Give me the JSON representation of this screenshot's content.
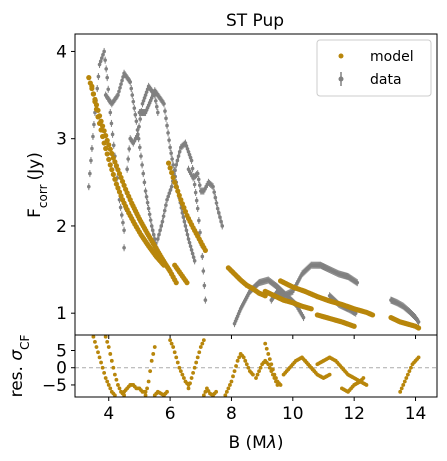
{
  "chart_data": [
    {
      "type": "scatter",
      "title": "ST Pup",
      "xlabel": "",
      "ylabel": "F",
      "ylabel_sub": "corr",
      "ylabel_unit": "(Jy)",
      "xlim": [
        2.9,
        14.7
      ],
      "ylim": [
        0.75,
        4.2
      ],
      "yticks": [
        1,
        2,
        3,
        4
      ],
      "yticklabels": [
        "1",
        "2",
        "3",
        "4"
      ],
      "grid": false,
      "legend_position": "top-right",
      "legend": [
        {
          "label": "model",
          "marker": "dot",
          "color": "#b8860b"
        },
        {
          "label": "data",
          "marker": "errorbar",
          "color": "#808080"
        }
      ],
      "series": [
        {
          "name": "data",
          "color": "#808080",
          "segments": [
            {
              "x": [
                3.35,
                3.42,
                3.55,
                3.7,
                3.85,
                3.95,
                4.05,
                4.2,
                4.35,
                4.5
              ],
              "y": [
                2.45,
                2.75,
                3.3,
                3.85,
                4.0,
                3.7,
                3.3,
                2.8,
                2.3,
                1.95
              ]
            },
            {
              "x": [
                3.9,
                4.1,
                4.3,
                4.5,
                4.7,
                4.9,
                5.05,
                5.2,
                5.4,
                5.6
              ],
              "y": [
                3.5,
                3.4,
                3.5,
                3.75,
                3.65,
                3.2,
                2.8,
                2.4,
                2.0,
                1.7
              ]
            },
            {
              "x": [
                4.5,
                4.55,
                4.6,
                4.7,
                4.8,
                4.95,
                5.1,
                5.3,
                5.5,
                5.6
              ],
              "y": [
                1.75,
                2.2,
                2.65,
                3.0,
                2.95,
                3.05,
                3.4,
                3.6,
                3.5,
                3.3
              ]
            },
            {
              "x": [
                5.0,
                5.2,
                5.5,
                5.8,
                6.0,
                6.2,
                6.4,
                6.6,
                6.8
              ],
              "y": [
                3.3,
                3.3,
                3.55,
                3.4,
                2.9,
                2.5,
                2.15,
                1.85,
                1.6
              ]
            },
            {
              "x": [
                5.6,
                5.75,
                5.9,
                6.05,
                6.2,
                6.35,
                6.5,
                6.7,
                6.9,
                7.05,
                7.15
              ],
              "y": [
                1.85,
                2.05,
                2.3,
                2.45,
                2.7,
                2.9,
                2.95,
                2.75,
                2.2,
                1.65,
                1.15
              ]
            },
            {
              "x": [
                6.6,
                6.75,
                6.9,
                7.0,
                7.1,
                7.25,
                7.4,
                7.55,
                7.7
              ],
              "y": [
                2.65,
                2.55,
                2.6,
                2.4,
                2.4,
                2.5,
                2.45,
                2.2,
                2.0
              ]
            },
            {
              "x": [
                8.1,
                8.3,
                8.6,
                8.9,
                9.2,
                9.5,
                9.8,
                10.1,
                10.35
              ],
              "y": [
                0.88,
                1.05,
                1.25,
                1.35,
                1.38,
                1.3,
                1.2,
                1.1,
                0.95
              ]
            },
            {
              "x": [
                9.3,
                9.5,
                9.7,
                10.0,
                10.3,
                10.6,
                10.9,
                11.2,
                11.5,
                11.8,
                12.1
              ],
              "y": [
                1.15,
                1.25,
                1.2,
                1.25,
                1.45,
                1.55,
                1.55,
                1.5,
                1.45,
                1.42,
                1.35
              ]
            },
            {
              "x": [
                11.2,
                11.5,
                11.8,
                12.05
              ],
              "y": [
                1.2,
                1.1,
                1.05,
                1.0
              ]
            },
            {
              "x": [
                13.2,
                13.4,
                13.6,
                13.8,
                14.0,
                14.1
              ],
              "y": [
                1.15,
                1.12,
                1.08,
                1.02,
                0.95,
                0.9
              ]
            }
          ]
        },
        {
          "name": "model",
          "color": "#b8860b",
          "segments": [
            {
              "x": [
                3.35,
                3.55,
                3.75,
                3.95,
                4.15,
                4.35,
                4.55,
                4.75,
                5.0,
                5.25,
                5.5,
                5.75,
                6.0,
                6.2
              ],
              "y": [
                3.7,
                3.45,
                3.2,
                2.98,
                2.78,
                2.6,
                2.42,
                2.26,
                2.08,
                1.92,
                1.77,
                1.62,
                1.48,
                1.35
              ]
            },
            {
              "x": [
                3.45,
                3.65,
                3.85,
                4.05,
                4.25,
                4.45,
                4.65,
                4.85,
                5.05,
                5.3,
                5.55,
                5.8
              ],
              "y": [
                3.6,
                3.25,
                2.95,
                2.7,
                2.48,
                2.3,
                2.15,
                2.02,
                1.9,
                1.77,
                1.65,
                1.55
              ]
            },
            {
              "x": [
                5.95,
                6.15,
                6.35,
                6.55,
                6.75,
                6.95,
                7.15
              ],
              "y": [
                2.72,
                2.5,
                2.3,
                2.12,
                1.98,
                1.85,
                1.72
              ]
            },
            {
              "x": [
                6.15,
                6.35,
                6.55
              ],
              "y": [
                1.55,
                1.45,
                1.35
              ]
            },
            {
              "x": [
                7.9,
                8.1,
                8.3,
                8.5,
                8.7,
                8.9,
                9.1
              ],
              "y": [
                1.52,
                1.45,
                1.38,
                1.32,
                1.28,
                1.23,
                1.2
              ]
            },
            {
              "x": [
                9.1,
                9.4,
                9.7,
                10.0,
                10.3,
                10.6
              ],
              "y": [
                1.25,
                1.2,
                1.15,
                1.12,
                1.08,
                1.05
              ]
            },
            {
              "x": [
                9.6,
                10.0,
                10.4,
                10.8,
                11.2,
                11.6,
                12.0,
                12.4,
                12.6
              ],
              "y": [
                1.37,
                1.3,
                1.25,
                1.19,
                1.14,
                1.1,
                1.05,
                1.01,
                0.98
              ]
            },
            {
              "x": [
                10.8,
                11.2,
                11.6,
                12.0
              ],
              "y": [
                0.98,
                0.94,
                0.9,
                0.85
              ]
            },
            {
              "x": [
                13.2,
                13.5,
                13.8,
                14.0,
                14.1
              ],
              "y": [
                0.95,
                0.9,
                0.87,
                0.85,
                0.83
              ]
            }
          ]
        }
      ]
    },
    {
      "type": "scatter",
      "xlabel": "B (M",
      "xlabel_symbol": "λ",
      "xlabel_close": ")",
      "ylabel": "res. ",
      "ylabel_symbol": "σ",
      "ylabel_sub": "CF",
      "xlim": [
        2.9,
        14.7
      ],
      "ylim": [
        -8.5,
        9.5
      ],
      "xticks": [
        4,
        6,
        8,
        10,
        12,
        14
      ],
      "xticklabels": [
        "4",
        "6",
        "8",
        "10",
        "12",
        "14"
      ],
      "yticks": [
        -5,
        0,
        5
      ],
      "yticklabels": [
        "−5",
        "0",
        "5"
      ],
      "reference_line": 0,
      "series": [
        {
          "name": "model",
          "color": "#b8860b",
          "segments": [
            {
              "x": [
                3.5,
                3.6,
                3.7,
                3.8,
                3.9,
                4.0,
                4.1,
                4.2
              ],
              "y": [
                9,
                6,
                3,
                0,
                -3,
                -5,
                -7,
                -8
              ]
            },
            {
              "x": [
                3.9,
                4.0,
                4.1,
                4.2,
                4.3,
                4.4,
                4.5
              ],
              "y": [
                9,
                6,
                2,
                -2,
                -5,
                -7,
                -8
              ]
            },
            {
              "x": [
                4.5,
                4.6,
                4.7,
                4.8,
                4.9,
                5.0,
                5.1,
                5.2
              ],
              "y": [
                -7,
                -6,
                -5,
                -5,
                -6,
                -6,
                -7,
                -7
              ]
            },
            {
              "x": [
                5.2,
                5.3,
                5.4,
                5.5
              ],
              "y": [
                -8,
                -4,
                2,
                6
              ]
            },
            {
              "x": [
                5.5,
                5.6,
                5.7,
                5.8,
                5.9
              ],
              "y": [
                -8,
                -7,
                -7.5,
                -8,
                -7
              ]
            },
            {
              "x": [
                6.0,
                6.1,
                6.2,
                6.3,
                6.4,
                6.5,
                6.6
              ],
              "y": [
                8,
                6,
                3,
                0,
                -2,
                -4,
                -5
              ]
            },
            {
              "x": [
                6.6,
                6.7,
                6.8,
                6.9,
                7.0,
                7.1
              ],
              "y": [
                -6,
                -3,
                0,
                3,
                6,
                8
              ]
            },
            {
              "x": [
                7.1,
                7.2,
                7.3,
                7.4,
                7.5
              ],
              "y": [
                -8,
                -6,
                -7.5,
                -8,
                -7
              ]
            },
            {
              "x": [
                7.8,
                7.9,
                8.0,
                8.1,
                8.2,
                8.3,
                8.4,
                8.5,
                8.6,
                8.7
              ],
              "y": [
                -8,
                -6,
                -4,
                -1,
                2,
                4,
                3,
                1,
                -1,
                -2
              ]
            },
            {
              "x": [
                8.8,
                8.9,
                9.0,
                9.1,
                9.2,
                9.3,
                9.4,
                9.5
              ],
              "y": [
                -3,
                -1,
                1,
                2,
                1,
                -1,
                -3,
                -5
              ]
            },
            {
              "x": [
                9.1,
                9.2,
                9.3,
                9.4,
                9.5,
                9.6
              ],
              "y": [
                7,
                4,
                1,
                -2,
                -4,
                -5
              ]
            },
            {
              "x": [
                9.7,
                9.9,
                10.1,
                10.3,
                10.5,
                10.7
              ],
              "y": [
                -2,
                0,
                2,
                3,
                1,
                -1
              ]
            },
            {
              "x": [
                10.4,
                10.6,
                10.8,
                11.0,
                11.2
              ],
              "y": [
                2,
                0,
                -2,
                -3,
                -2
              ]
            },
            {
              "x": [
                10.8,
                11.0,
                11.2,
                11.4,
                11.6,
                11.8,
                12.0,
                12.2,
                12.4
              ],
              "y": [
                1,
                2,
                3,
                2,
                0,
                -2,
                -3,
                -4,
                -5
              ]
            },
            {
              "x": [
                11.6,
                11.8,
                12.0,
                12.2,
                12.3
              ],
              "y": [
                -6,
                -7,
                -5,
                -4,
                -3
              ]
            },
            {
              "x": [
                13.5,
                13.6,
                13.7,
                13.8,
                13.9,
                14.0,
                14.1
              ],
              "y": [
                -7,
                -5,
                -3,
                -1,
                1,
                2,
                3
              ]
            }
          ]
        }
      ]
    }
  ]
}
